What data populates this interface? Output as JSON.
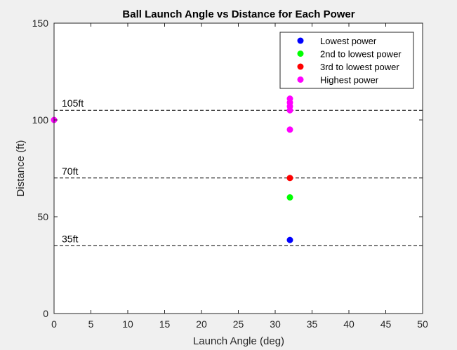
{
  "chart_data": {
    "type": "scatter",
    "title": "Ball Launch Angle vs Distance for Each Power",
    "xlabel": "Launch Angle (deg)",
    "ylabel": "Distance (ft)",
    "xlim": [
      0,
      50
    ],
    "ylim": [
      0,
      150
    ],
    "xticks": [
      0,
      5,
      10,
      15,
      20,
      25,
      30,
      35,
      40,
      45,
      50
    ],
    "yticks": [
      0,
      50,
      100,
      150
    ],
    "grid": false,
    "legend_position": "top-right",
    "series": [
      {
        "name": "Lowest power",
        "color": "#0000ff",
        "points": [
          [
            32,
            38
          ]
        ]
      },
      {
        "name": "2nd to lowest power",
        "color": "#00ff00",
        "points": [
          [
            32,
            60
          ]
        ]
      },
      {
        "name": "3rd to lowest power",
        "color": "#ff0000",
        "points": [
          [
            32,
            70
          ]
        ]
      },
      {
        "name": "Highest power",
        "color": "#ff00ff",
        "points": [
          [
            0,
            100
          ],
          [
            32,
            95
          ],
          [
            32,
            105
          ],
          [
            32,
            107
          ],
          [
            32,
            109
          ],
          [
            32,
            111
          ]
        ]
      }
    ],
    "reference_lines": [
      {
        "y": 105,
        "label": "105ft"
      },
      {
        "y": 70,
        "label": "70ft"
      },
      {
        "y": 35,
        "label": "35ft"
      }
    ]
  }
}
